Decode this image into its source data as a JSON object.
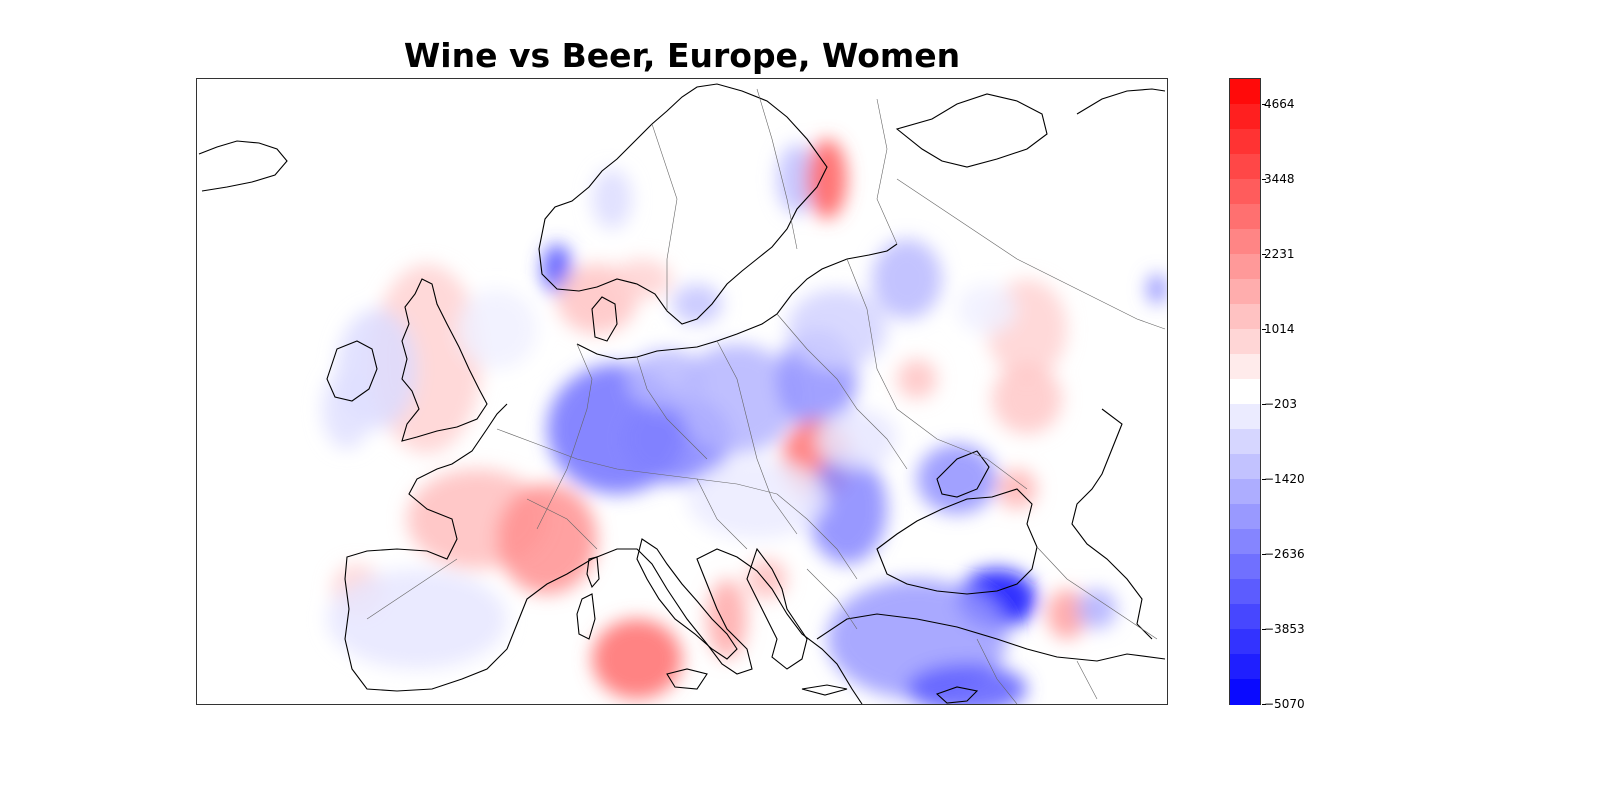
{
  "title": "Wine vs Beer, Europe, Women",
  "colorbar": {
    "min": -5070,
    "max": 5070,
    "tick_labels": [
      "4664",
      "3448",
      "2231",
      "1014",
      "−203",
      "−1420",
      "−2636",
      "−3853",
      "−5070"
    ],
    "tick_values": [
      4664,
      3448,
      2231,
      1014,
      -203,
      -1420,
      -2636,
      -3853,
      -5070
    ],
    "levels": 25,
    "negative_color": "#0000ff",
    "positive_color": "#ff0000",
    "neutral_color": "#ffffff"
  },
  "map": {
    "region": "Europe",
    "projection": "equirectangular",
    "coastline_color": "#000000",
    "border_color": "#555555"
  }
}
